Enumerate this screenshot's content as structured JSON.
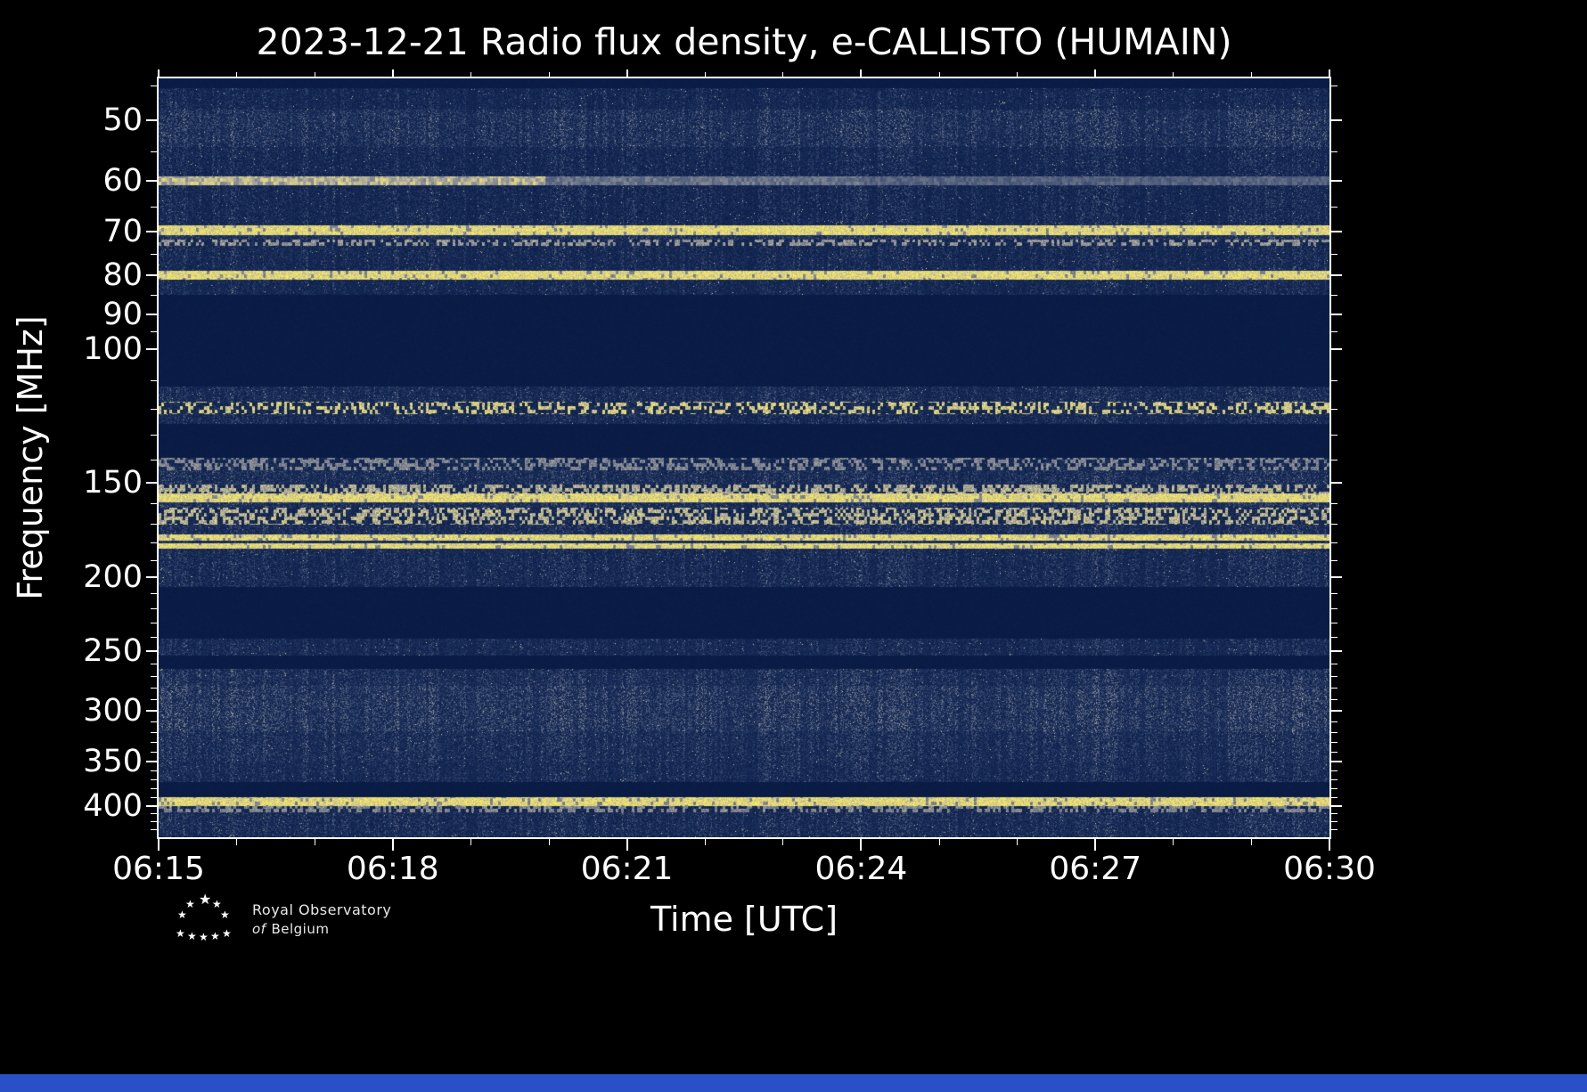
{
  "page": {
    "background": "#000000",
    "bottom_bar_color": "#2a50c8",
    "text_color": "#ffffff"
  },
  "chart_data": {
    "type": "heatmap",
    "title": "2023-12-21 Radio flux density, e-CALLISTO (HUMAIN)",
    "xlabel": "Time [UTC]",
    "ylabel": "Frequency [MHz]",
    "network": "e-CALLISTO",
    "station": "HUMAIN",
    "date": "2023-12-21",
    "x_ticks": [
      "06:15",
      "06:18",
      "06:21",
      "06:24",
      "06:27",
      "06:30"
    ],
    "x_minor_ticks_per_interval": 2,
    "time_range_utc": [
      "06:15",
      "06:30"
    ],
    "y_ticks": [
      50,
      60,
      70,
      80,
      90,
      100,
      150,
      200,
      250,
      300,
      350,
      400
    ],
    "y_minor_ticks": [
      45,
      55,
      65,
      75,
      85,
      95,
      110,
      120,
      130,
      140,
      160,
      170,
      180,
      190,
      210,
      220,
      230,
      240,
      260,
      270,
      280,
      290,
      310,
      320,
      330,
      340,
      360,
      370,
      380,
      390,
      410,
      420,
      430
    ],
    "y_scale": "log",
    "freq_range_mhz": [
      44,
      440
    ],
    "rfi_lines_mhz": [
      60,
      70,
      73,
      80,
      118,
      135,
      155,
      178,
      182,
      250,
      405
    ],
    "blanked_bands_mhz": [
      [
        85,
        112
      ],
      [
        125,
        139
      ],
      [
        206,
        241
      ],
      [
        253,
        263
      ],
      [
        372,
        389
      ]
    ],
    "colormap_stops": [
      {
        "v": 0.0,
        "rgb": [
          6,
          24,
          64
        ]
      },
      {
        "v": 0.3,
        "rgb": [
          28,
          48,
          92
        ]
      },
      {
        "v": 0.5,
        "rgb": [
          84,
          97,
          126
        ]
      },
      {
        "v": 0.65,
        "rgb": [
          138,
          142,
          150
        ]
      },
      {
        "v": 0.78,
        "rgb": [
          198,
          190,
          150
        ]
      },
      {
        "v": 0.88,
        "rgb": [
          240,
          228,
          112
        ]
      },
      {
        "v": 1.0,
        "rgb": [
          255,
          243,
          64
        ]
      }
    ],
    "bands": [
      {
        "from": 0.0,
        "to": 0.012,
        "kind": "dark"
      },
      {
        "from": 0.012,
        "to": 0.04,
        "kind": "noise",
        "base": 0.1,
        "var": 0.3
      },
      {
        "from": 0.04,
        "to": 0.09,
        "kind": "noise",
        "base": 0.14,
        "var": 0.38
      },
      {
        "from": 0.09,
        "to": 0.128,
        "kind": "noise",
        "base": 0.1,
        "var": 0.32
      },
      {
        "from": 0.128,
        "to": 0.14,
        "kind": "fadeline"
      },
      {
        "from": 0.14,
        "to": 0.193,
        "kind": "noise",
        "base": 0.1,
        "var": 0.32
      },
      {
        "from": 0.193,
        "to": 0.206,
        "kind": "line"
      },
      {
        "from": 0.206,
        "to": 0.212,
        "kind": "noise",
        "base": 0.14,
        "var": 0.36
      },
      {
        "from": 0.212,
        "to": 0.22,
        "kind": "speckline",
        "p": 0.5,
        "amp": 0.75
      },
      {
        "from": 0.22,
        "to": 0.253,
        "kind": "noise",
        "base": 0.1,
        "var": 0.32
      },
      {
        "from": 0.253,
        "to": 0.265,
        "kind": "line"
      },
      {
        "from": 0.265,
        "to": 0.285,
        "kind": "noise",
        "base": 0.1,
        "var": 0.3
      },
      {
        "from": 0.285,
        "to": 0.405,
        "kind": "dark"
      },
      {
        "from": 0.405,
        "to": 0.425,
        "kind": "noise",
        "base": 0.11,
        "var": 0.34
      },
      {
        "from": 0.425,
        "to": 0.442,
        "kind": "speckline",
        "p": 0.4,
        "amp": 0.92
      },
      {
        "from": 0.442,
        "to": 0.455,
        "kind": "noise",
        "base": 0.11,
        "var": 0.32
      },
      {
        "from": 0.455,
        "to": 0.5,
        "kind": "dark"
      },
      {
        "from": 0.5,
        "to": 0.516,
        "kind": "speckline",
        "p": 0.45,
        "amp": 0.7
      },
      {
        "from": 0.516,
        "to": 0.535,
        "kind": "noise",
        "base": 0.12,
        "var": 0.36
      },
      {
        "from": 0.535,
        "to": 0.546,
        "kind": "speckline",
        "p": 0.55,
        "amp": 0.82
      },
      {
        "from": 0.546,
        "to": 0.558,
        "kind": "line"
      },
      {
        "from": 0.558,
        "to": 0.565,
        "kind": "noise",
        "base": 0.13,
        "var": 0.36
      },
      {
        "from": 0.565,
        "to": 0.588,
        "kind": "speckline",
        "p": 0.5,
        "amp": 0.85
      },
      {
        "from": 0.588,
        "to": 0.6,
        "kind": "noise",
        "base": 0.12,
        "var": 0.34
      },
      {
        "from": 0.6,
        "to": 0.608,
        "kind": "line"
      },
      {
        "from": 0.608,
        "to": 0.612,
        "kind": "noise",
        "base": 0.14,
        "var": 0.3
      },
      {
        "from": 0.612,
        "to": 0.619,
        "kind": "line"
      },
      {
        "from": 0.619,
        "to": 0.67,
        "kind": "noise",
        "base": 0.11,
        "var": 0.33
      },
      {
        "from": 0.67,
        "to": 0.738,
        "kind": "dark"
      },
      {
        "from": 0.738,
        "to": 0.76,
        "kind": "noise",
        "base": 0.12,
        "var": 0.3
      },
      {
        "from": 0.76,
        "to": 0.777,
        "kind": "dark"
      },
      {
        "from": 0.777,
        "to": 0.8,
        "kind": "noise",
        "base": 0.13,
        "var": 0.36
      },
      {
        "from": 0.8,
        "to": 0.818,
        "kind": "noise",
        "base": 0.16,
        "var": 0.4
      },
      {
        "from": 0.818,
        "to": 0.86,
        "kind": "noise",
        "base": 0.15,
        "var": 0.42
      },
      {
        "from": 0.86,
        "to": 0.9,
        "kind": "noise",
        "base": 0.13,
        "var": 0.35
      },
      {
        "from": 0.9,
        "to": 0.927,
        "kind": "noise",
        "base": 0.12,
        "var": 0.32
      },
      {
        "from": 0.927,
        "to": 0.947,
        "kind": "dark"
      },
      {
        "from": 0.947,
        "to": 0.958,
        "kind": "line"
      },
      {
        "from": 0.958,
        "to": 0.966,
        "kind": "speckline",
        "p": 0.5,
        "amp": 0.7
      },
      {
        "from": 0.966,
        "to": 1.0,
        "kind": "noise",
        "base": 0.12,
        "var": 0.34
      }
    ]
  },
  "footer": {
    "credit_line1": "Royal Observatory",
    "credit_of": "of",
    "credit_line2": "Belgium"
  }
}
